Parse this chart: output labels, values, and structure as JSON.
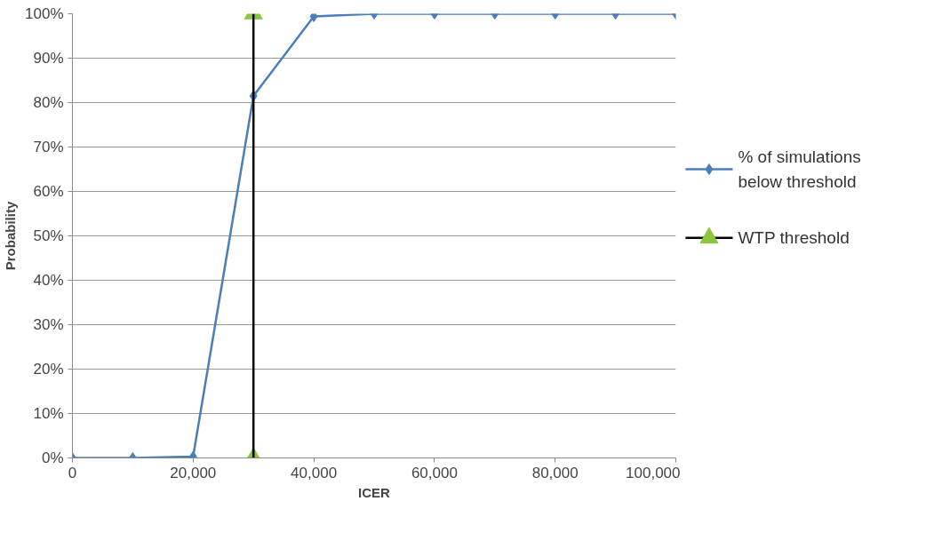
{
  "chart_data": {
    "type": "line",
    "xlabel": "ICER",
    "ylabel": "Probability",
    "x": [
      0,
      10000,
      20000,
      30000,
      40000,
      50000,
      60000,
      70000,
      80000,
      90000,
      100000
    ],
    "series": [
      {
        "name": "% of simulations below threshold",
        "color": "#4a7ebb",
        "marker": "diamond",
        "values": [
          0,
          0,
          0.3,
          81.5,
          99.4,
          100,
          100,
          100,
          100,
          100,
          100
        ]
      },
      {
        "name": "WTP threshold",
        "color": "#000000",
        "marker": "triangle",
        "colors": [
          "#8cc63f",
          "#8cc63f"
        ],
        "x": [
          30000,
          30000
        ],
        "values": [
          0,
          100
        ]
      }
    ],
    "xlim": [
      0,
      100000
    ],
    "xticks": [
      0,
      {
        "value": 20000,
        "label": "20,000"
      },
      {
        "value": 40000,
        "label": "40,000"
      },
      {
        "value": 60000,
        "label": "60,000"
      },
      {
        "value": 80000,
        "label": "80,000"
      },
      {
        "value": 100000,
        "label": "100,000"
      }
    ],
    "ylim": [
      0,
      100
    ],
    "yticks": [
      {
        "value": 0,
        "label": "0%"
      },
      {
        "value": 10,
        "label": "10%"
      },
      {
        "value": 20,
        "label": "20%"
      },
      {
        "value": 30,
        "label": "30%"
      },
      {
        "value": 40,
        "label": "40%"
      },
      {
        "value": 50,
        "label": "50%"
      },
      {
        "value": 60,
        "label": "60%"
      },
      {
        "value": 70,
        "label": "70%"
      },
      {
        "value": 80,
        "label": "80%"
      },
      {
        "value": 90,
        "label": "90%"
      },
      {
        "value": 100,
        "label": "100%"
      }
    ],
    "grid": "y",
    "legend": "right"
  }
}
